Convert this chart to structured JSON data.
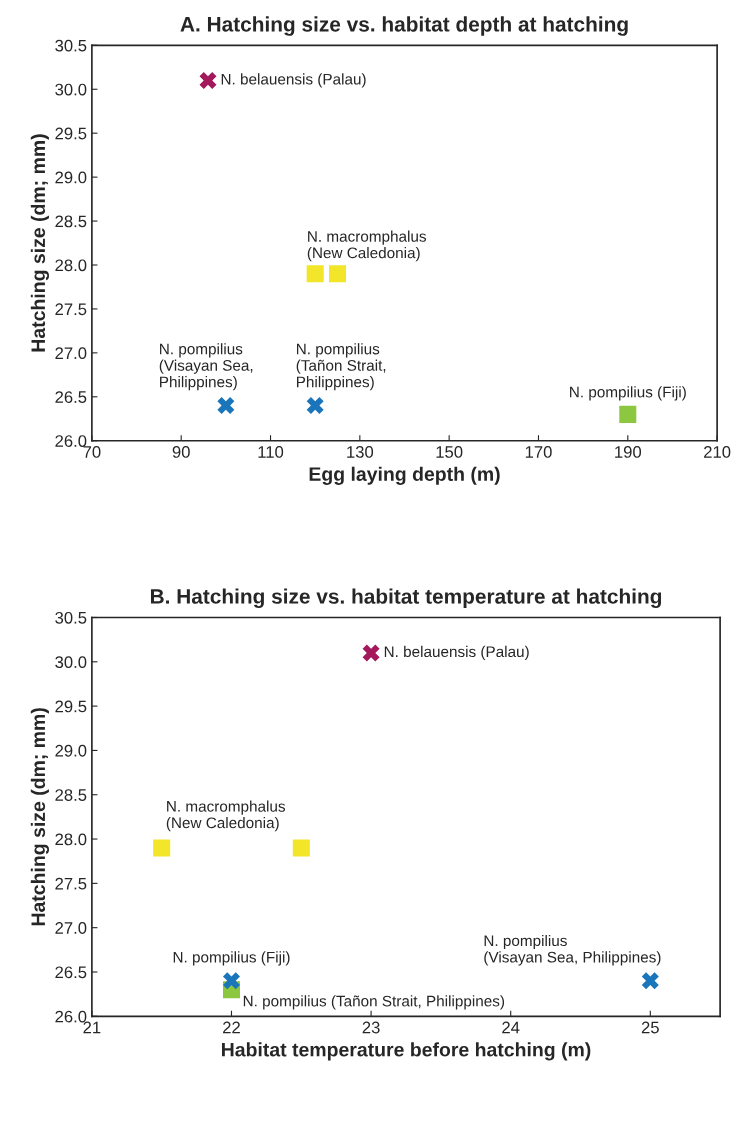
{
  "chart_data": [
    {
      "type": "scatter",
      "title": "A. Hatching size vs. habitat depth at hatching",
      "xlabel": "Egg laying depth (m)",
      "ylabel": "Hatching size (dm; mm)",
      "xlim": [
        70,
        210
      ],
      "xticks": [
        70,
        90,
        110,
        130,
        150,
        170,
        190,
        210
      ],
      "ylim": [
        26.0,
        30.5
      ],
      "yticks": [
        {
          "value": 26.0,
          "label": "26.0"
        },
        {
          "value": 26.5,
          "label": "26.5"
        },
        {
          "value": 27.0,
          "label": "27.0"
        },
        {
          "value": 27.5,
          "label": "27.5"
        },
        {
          "value": 28.0,
          "label": "28.0"
        },
        {
          "value": 28.5,
          "label": "28.5"
        },
        {
          "value": 29.0,
          "label": "29.0"
        },
        {
          "value": 29.5,
          "label": "29.5"
        },
        {
          "value": 30.0,
          "label": "30.0"
        },
        {
          "value": 30.5,
          "label": "30.5"
        }
      ],
      "grid": false,
      "legend": false,
      "series": [
        {
          "color": "#a3195b",
          "marker": "cross",
          "x": [
            96
          ],
          "values": [
            30.1
          ]
        },
        {
          "color": "#f2e52a",
          "marker": "square",
          "x": [
            120,
            125
          ],
          "values": [
            27.9,
            27.9
          ]
        },
        {
          "color": "#1a75bb",
          "marker": "cross",
          "x": [
            100,
            120
          ],
          "values": [
            26.4,
            26.4
          ]
        },
        {
          "color": "#8dc63f",
          "marker": "square",
          "x": [
            190
          ],
          "values": [
            26.3
          ]
        }
      ],
      "annotations": [
        {
          "text": "N. belauensis (Palau)",
          "x": 96,
          "y": 30.1
        },
        {
          "text": "N. macromphalus\n(New Caledonia)",
          "x": 120,
          "y": 27.9
        },
        {
          "text": "N. pompilius\n(Visayan Sea,\nPhilippines)",
          "x": 100,
          "y": 26.4
        },
        {
          "text": "N. pompilius\n(Tañon Strait,\nPhilippines)",
          "x": 120,
          "y": 26.4
        },
        {
          "text": "N. pompilius (Fiji)",
          "x": 190,
          "y": 26.3
        }
      ]
    },
    {
      "type": "scatter",
      "title": "B. Hatching size vs. habitat temperature at hatching",
      "xlabel": "Habitat temperature before hatching (m)",
      "ylabel": "Hatching size (dm; mm)",
      "xlim": [
        21,
        25.5
      ],
      "xticks": [
        21,
        22,
        23,
        24,
        25
      ],
      "ylim": [
        26.0,
        30.5
      ],
      "yticks": [
        {
          "value": 26.0,
          "label": "26.0"
        },
        {
          "value": 26.5,
          "label": "26.5"
        },
        {
          "value": 27.0,
          "label": "27.0"
        },
        {
          "value": 27.5,
          "label": "27.5"
        },
        {
          "value": 28.0,
          "label": "28.0"
        },
        {
          "value": 28.5,
          "label": "28.5"
        },
        {
          "value": 29.0,
          "label": "29.0"
        },
        {
          "value": 29.5,
          "label": "29.5"
        },
        {
          "value": 30.0,
          "label": "30.0"
        },
        {
          "value": 30.5,
          "label": "30.5"
        }
      ],
      "grid": false,
      "legend": false,
      "series": [
        {
          "color": "#a3195b",
          "marker": "cross",
          "x": [
            23
          ],
          "values": [
            30.1
          ]
        },
        {
          "color": "#f2e52a",
          "marker": "square",
          "x": [
            21.5,
            22.5
          ],
          "values": [
            27.9,
            27.9
          ]
        },
        {
          "color": "#8dc63f",
          "marker": "square",
          "x": [
            22
          ],
          "values": [
            26.3
          ]
        },
        {
          "color": "#1a75bb",
          "marker": "cross",
          "x": [
            22,
            25
          ],
          "values": [
            26.4,
            26.4
          ]
        }
      ],
      "annotations": [
        {
          "text": "N. belauensis (Palau)",
          "x": 23,
          "y": 30.1
        },
        {
          "text": "N. macromphalus\n(New Caledonia)",
          "x": 21.5,
          "y": 27.9
        },
        {
          "text": "N. pompilius (Fiji)",
          "x": 22,
          "y": 26.4
        },
        {
          "text": "N. pompilius (Tañon Strait, Philippines)",
          "x": 22,
          "y": 26.3
        },
        {
          "text": "N. pompilius\n(Visayan Sea, Philippines)",
          "x": 25,
          "y": 26.4
        }
      ]
    }
  ]
}
